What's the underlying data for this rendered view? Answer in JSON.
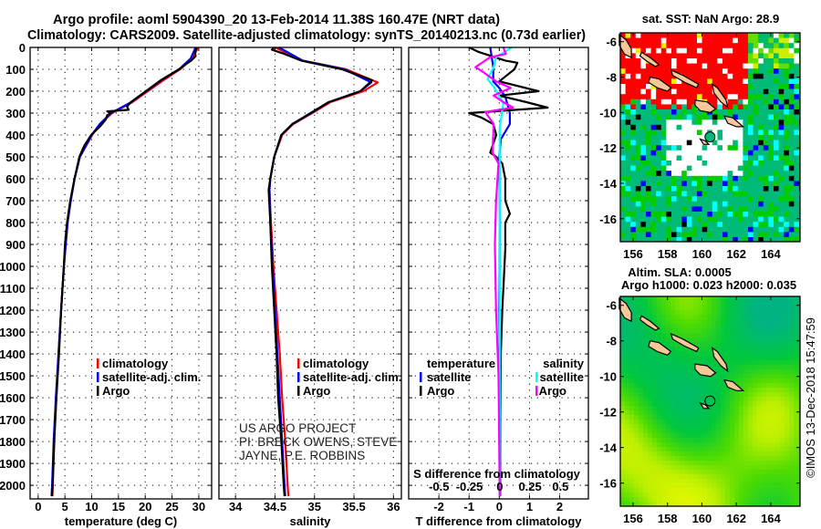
{
  "title": {
    "line1": "Argo profile: aoml 5904390_20 13-Feb-2014 11.38S 160.47E (NRT data)",
    "line2": "Climatology: CARS2009. Satellite-adjusted climatology: synTS_20140213.nc (0.73d earlier)"
  },
  "credits": {
    "project": "US ARGO PROJECT",
    "pi": "PI: BRECK OWENS, STEVE JAYNE, P.E. ROBBINS"
  },
  "imos_stamp": "©IMOS 13-Dec-2018 15:47:59",
  "colors": {
    "climatology": "#ff0000",
    "satellite": "#0000ff",
    "argo": "#000000",
    "sal_satellite": "#00ffff",
    "sal_argo": "#ff00ff",
    "land": "#f8c898"
  },
  "chart_data": [
    {
      "type": "line",
      "id": "temperature",
      "xlabel": "temperature (deg C)",
      "ylabel": "",
      "xlim": [
        -1.5,
        32.4
      ],
      "ylim": [
        2062,
        0
      ],
      "xticks": [
        0,
        5,
        10,
        15,
        20,
        25,
        30
      ],
      "xtick_labels": [
        "0",
        "5",
        "10",
        "15",
        "20",
        "25",
        "30"
      ],
      "yticks": [
        0,
        100,
        200,
        300,
        400,
        500,
        600,
        700,
        800,
        900,
        1000,
        1100,
        1200,
        1300,
        1400,
        1500,
        1600,
        1700,
        1800,
        1900,
        2000
      ],
      "ytick_labels": [
        "0",
        "100",
        "200",
        "300",
        "400",
        "500",
        "600",
        "700",
        "800",
        "900",
        "1000",
        "1100",
        "1200",
        "1300",
        "1400",
        "1500",
        "1600",
        "1700",
        "1800",
        "1900",
        "2000"
      ],
      "grid": true,
      "legend": [
        "climatology",
        "satellite-adj. clim.",
        "Argo"
      ],
      "series": [
        {
          "name": "climatology",
          "color": "#ff0000",
          "points": [
            [
              29.9,
              0
            ],
            [
              28.8,
              50
            ],
            [
              26.5,
              100
            ],
            [
              23.4,
              150
            ],
            [
              20.5,
              200
            ],
            [
              17.6,
              250
            ],
            [
              13.8,
              300
            ],
            [
              11.6,
              350
            ],
            [
              10.1,
              400
            ],
            [
              7.8,
              500
            ],
            [
              6.8,
              600
            ],
            [
              6.1,
              700
            ],
            [
              5.5,
              800
            ],
            [
              4.8,
              1000
            ],
            [
              4.3,
              1200
            ],
            [
              3.8,
              1400
            ],
            [
              3.4,
              1600
            ],
            [
              3.0,
              1800
            ],
            [
              2.75,
              2000
            ],
            [
              2.65,
              2050
            ]
          ]
        },
        {
          "name": "satellite-adj. clim.",
          "color": "#0000ff",
          "points": [
            [
              29.4,
              0
            ],
            [
              28.5,
              50
            ],
            [
              26.3,
              100
            ],
            [
              23.0,
              150
            ],
            [
              20.2,
              200
            ],
            [
              17.4,
              250
            ],
            [
              13.6,
              300
            ],
            [
              11.5,
              350
            ],
            [
              10.0,
              400
            ],
            [
              7.8,
              500
            ],
            [
              6.8,
              600
            ],
            [
              6.1,
              700
            ],
            [
              5.5,
              800
            ],
            [
              4.8,
              1000
            ],
            [
              4.3,
              1200
            ],
            [
              3.8,
              1400
            ],
            [
              3.3,
              1600
            ],
            [
              2.9,
              1800
            ],
            [
              2.6,
              2000
            ],
            [
              2.5,
              2050
            ]
          ]
        },
        {
          "name": "Argo",
          "color": "#000000",
          "points": [
            [
              29.6,
              0
            ],
            [
              29.3,
              20
            ],
            [
              29.4,
              40
            ],
            [
              28.6,
              60
            ],
            [
              27.4,
              80
            ],
            [
              26.3,
              100
            ],
            [
              22.9,
              150
            ],
            [
              20.1,
              200
            ],
            [
              17.3,
              250
            ],
            [
              16.6,
              270
            ],
            [
              16.9,
              285
            ],
            [
              12.9,
              292
            ],
            [
              13.6,
              300
            ],
            [
              12.9,
              310
            ],
            [
              12.6,
              330
            ],
            [
              11.6,
              360
            ],
            [
              9.9,
              400
            ],
            [
              8.6,
              450
            ],
            [
              7.7,
              500
            ],
            [
              6.8,
              600
            ],
            [
              6.0,
              700
            ],
            [
              5.4,
              800
            ],
            [
              5.0,
              900
            ],
            [
              4.8,
              1000
            ],
            [
              4.3,
              1200
            ],
            [
              3.9,
              1400
            ],
            [
              3.4,
              1600
            ],
            [
              3.0,
              1800
            ],
            [
              2.7,
              2000
            ],
            [
              2.6,
              2050
            ]
          ]
        }
      ]
    },
    {
      "type": "line",
      "id": "salinity",
      "xlabel": "salinity",
      "xlim": [
        33.79,
        36.1
      ],
      "ylim": [
        2062,
        0
      ],
      "xticks": [
        34,
        34.5,
        35,
        35.5,
        36
      ],
      "xtick_labels": [
        "34",
        "34.5",
        "35",
        "35.5",
        "36"
      ],
      "grid": true,
      "legend": [
        "climatology",
        "satellite-adj. clim.",
        "Argo"
      ],
      "series": [
        {
          "name": "climatology",
          "color": "#ff0000",
          "points": [
            [
              34.5,
              0
            ],
            [
              34.85,
              60
            ],
            [
              35.4,
              100
            ],
            [
              35.8,
              160
            ],
            [
              35.62,
              200
            ],
            [
              35.2,
              250
            ],
            [
              34.97,
              300
            ],
            [
              34.73,
              350
            ],
            [
              34.59,
              400
            ],
            [
              34.49,
              500
            ],
            [
              34.44,
              600
            ],
            [
              34.43,
              650
            ],
            [
              34.45,
              800
            ],
            [
              34.48,
              1000
            ],
            [
              34.52,
              1200
            ],
            [
              34.56,
              1400
            ],
            [
              34.59,
              1600
            ],
            [
              34.63,
              1800
            ],
            [
              34.66,
              2000
            ],
            [
              34.67,
              2050
            ]
          ]
        },
        {
          "name": "satellite-adj. clim.",
          "color": "#0000ff",
          "points": [
            [
              34.55,
              0
            ],
            [
              34.85,
              60
            ],
            [
              35.38,
              100
            ],
            [
              35.72,
              160
            ],
            [
              35.58,
              200
            ],
            [
              35.18,
              250
            ],
            [
              34.96,
              300
            ],
            [
              34.72,
              350
            ],
            [
              34.58,
              400
            ],
            [
              34.49,
              500
            ],
            [
              34.44,
              600
            ],
            [
              34.43,
              650
            ],
            [
              34.44,
              800
            ],
            [
              34.47,
              1000
            ],
            [
              34.5,
              1200
            ],
            [
              34.53,
              1400
            ],
            [
              34.56,
              1600
            ],
            [
              34.59,
              1800
            ],
            [
              34.62,
              2000
            ],
            [
              34.63,
              2050
            ]
          ]
        },
        {
          "name": "Argo",
          "color": "#000000",
          "points": [
            [
              34.49,
              0
            ],
            [
              34.46,
              10
            ],
            [
              34.62,
              30
            ],
            [
              34.83,
              60
            ],
            [
              35.35,
              100
            ],
            [
              35.73,
              150
            ],
            [
              35.58,
              200
            ],
            [
              35.18,
              250
            ],
            [
              34.95,
              300
            ],
            [
              34.72,
              350
            ],
            [
              34.58,
              400
            ],
            [
              34.49,
              500
            ],
            [
              34.44,
              600
            ],
            [
              34.42,
              650
            ],
            [
              34.44,
              800
            ],
            [
              34.46,
              1000
            ],
            [
              34.49,
              1200
            ],
            [
              34.52,
              1400
            ],
            [
              34.54,
              1600
            ],
            [
              34.58,
              1800
            ],
            [
              34.61,
              2000
            ],
            [
              34.62,
              2050
            ]
          ]
        }
      ]
    },
    {
      "type": "line",
      "id": "difference",
      "xlabel": "T difference from climatology",
      "xlim": [
        -3.0,
        2.95
      ],
      "ylim": [
        2062,
        0
      ],
      "xticks": [
        -2,
        -1,
        0,
        1,
        2
      ],
      "xtick_labels": [
        "-2",
        "-1",
        "0",
        "1",
        "2"
      ],
      "secondary_x": {
        "label": "S difference from climatology",
        "xlim": [
          -0.75,
          0.73
        ],
        "xticks": [
          -0.5,
          -0.25,
          0,
          0.25,
          0.5
        ],
        "xtick_labels": [
          "-0.5",
          "-0.25",
          "0",
          "0.25",
          "0.5"
        ]
      },
      "grid": true,
      "legend": {
        "temperature_title": "temperature",
        "salinity_title": "salinity",
        "satellite": "satellite",
        "argo": "Argo"
      },
      "series": [
        {
          "name": "T satellite",
          "axis": "T",
          "color": "#0000ff",
          "points": [
            [
              -0.3,
              0
            ],
            [
              -0.2,
              90
            ],
            [
              -0.2,
              155
            ],
            [
              0.0,
              185
            ],
            [
              0.2,
              225
            ],
            [
              0.35,
              300
            ],
            [
              0.35,
              350
            ],
            [
              0.05,
              420
            ],
            [
              0.0,
              500
            ],
            [
              0.02,
              800
            ],
            [
              0.0,
              1200
            ],
            [
              0.02,
              1600
            ],
            [
              0.03,
              2050
            ]
          ]
        },
        {
          "name": "T Argo",
          "axis": "T",
          "color": "#000000",
          "points": [
            [
              -1.0,
              0
            ],
            [
              -0.7,
              20
            ],
            [
              0.2,
              60
            ],
            [
              0.6,
              70
            ],
            [
              0.5,
              100
            ],
            [
              0.0,
              155
            ],
            [
              1.3,
              200
            ],
            [
              0.0,
              220
            ],
            [
              0.9,
              250
            ],
            [
              1.6,
              275
            ],
            [
              -1.0,
              300
            ],
            [
              -0.6,
              320
            ],
            [
              -0.2,
              350
            ],
            [
              -0.1,
              400
            ],
            [
              -0.3,
              480
            ],
            [
              -0.1,
              500
            ],
            [
              0.1,
              530
            ],
            [
              0.2,
              600
            ],
            [
              0.2,
              700
            ],
            [
              0.35,
              760
            ],
            [
              0.2,
              800
            ],
            [
              0.2,
              920
            ],
            [
              0.15,
              1060
            ],
            [
              0.1,
              1200
            ],
            [
              0.05,
              1400
            ],
            [
              0.03,
              1700
            ],
            [
              0.02,
              2050
            ]
          ]
        },
        {
          "name": "S satellite",
          "axis": "S",
          "color": "#00ffff",
          "points": [
            [
              0.1,
              0
            ],
            [
              -0.03,
              45
            ],
            [
              -0.05,
              90
            ],
            [
              -0.1,
              145
            ],
            [
              -0.05,
              180
            ],
            [
              0.03,
              255
            ],
            [
              0.0,
              365
            ],
            [
              0.0,
              600
            ],
            [
              0.0,
              1200
            ],
            [
              0.0,
              2050
            ]
          ]
        },
        {
          "name": "S Argo",
          "axis": "S",
          "color": "#ff00ff",
          "points": [
            [
              0.03,
              0
            ],
            [
              0.05,
              30
            ],
            [
              -0.08,
              45
            ],
            [
              -0.2,
              90
            ],
            [
              -0.13,
              115
            ],
            [
              -0.03,
              155
            ],
            [
              0.09,
              185
            ],
            [
              -0.05,
              220
            ],
            [
              0.03,
              250
            ],
            [
              0.11,
              275
            ],
            [
              -0.12,
              295
            ],
            [
              -0.05,
              350
            ],
            [
              -0.06,
              480
            ],
            [
              -0.01,
              530
            ],
            [
              -0.03,
              700
            ],
            [
              -0.04,
              900
            ],
            [
              -0.03,
              1200
            ],
            [
              -0.01,
              1500
            ],
            [
              0.0,
              2050
            ]
          ]
        }
      ]
    },
    {
      "type": "heatmap",
      "id": "sst_map",
      "title": "sat. SST: NaN Argo: 28.9",
      "xlim": [
        155.26,
        165.7
      ],
      "ylim": [
        -17.3,
        -5.5
      ],
      "xticks": [
        156,
        158,
        160,
        162,
        164
      ],
      "xtick_labels": [
        "156",
        "158",
        "160",
        "162",
        "164"
      ],
      "yticks": [
        -6,
        -8,
        -10,
        -12,
        -14,
        -16
      ],
      "ytick_labels": [
        "-6",
        "-8",
        "-10",
        "-12",
        "-14",
        "-16"
      ],
      "argo_position": [
        160.47,
        -11.38
      ]
    },
    {
      "type": "heatmap",
      "id": "sla_map",
      "title": "Altim. SLA: 0.0005",
      "subtitle": "Argo h1000: 0.023 h2000: 0.035",
      "xlim": [
        155.26,
        165.7
      ],
      "ylim": [
        -17.3,
        -5.5
      ],
      "xticks": [
        156,
        158,
        160,
        162,
        164
      ],
      "xtick_labels": [
        "156",
        "158",
        "160",
        "162",
        "164"
      ],
      "yticks": [
        -6,
        -8,
        -10,
        -12,
        -14,
        -16
      ],
      "ytick_labels": [
        "-6",
        "-8",
        "-10",
        "-12",
        "-14",
        "-16"
      ],
      "argo_position": [
        160.47,
        -11.38
      ]
    }
  ]
}
